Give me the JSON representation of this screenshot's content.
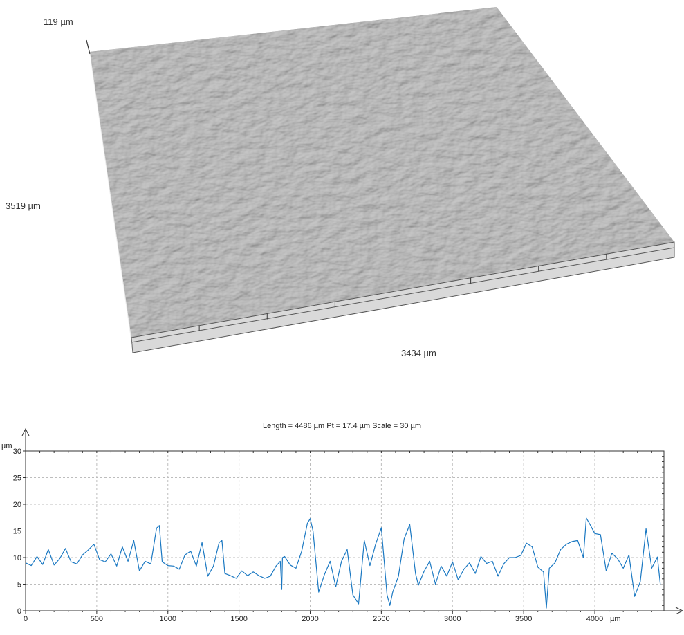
{
  "surface": {
    "z_extent_label": "119 µm",
    "y_extent_label": "3519 µm",
    "x_extent_label": "3434 µm"
  },
  "profile": {
    "header": "Length = 4486 µm  Pt = 17.4 µm  Scale = 30 µm"
  },
  "chart_data": {
    "type": "line",
    "title": "Length = 4486 µm  Pt = 17.4 µm  Scale = 30 µm",
    "xlabel": "µm",
    "ylabel": "µm",
    "xlim": [
      0,
      4486
    ],
    "ylim": [
      0,
      30
    ],
    "x_ticks": [
      "0",
      "500",
      "1000",
      "1500",
      "2000",
      "2500",
      "3000",
      "3500",
      "4000"
    ],
    "x_unit_label": "µm",
    "y_ticks": [
      "0",
      "5",
      "10",
      "15",
      "20",
      "25",
      "30"
    ],
    "y_unit_label": "µm",
    "grid": true,
    "color": "#1a78c2",
    "series": [
      {
        "x": [
          0,
          40,
          80,
          120,
          160,
          200,
          240,
          280,
          320,
          360,
          400,
          440,
          480,
          520,
          560,
          600,
          640,
          680,
          720,
          760,
          800,
          840,
          880,
          920,
          940,
          960,
          1000,
          1040,
          1080,
          1120,
          1160,
          1200,
          1240,
          1280,
          1320,
          1360,
          1380,
          1400,
          1440,
          1480,
          1520,
          1560,
          1600,
          1640,
          1680,
          1720,
          1760,
          1790,
          1800,
          1805,
          1820,
          1860,
          1900,
          1940,
          1980,
          2000,
          2020,
          2060,
          2100,
          2140,
          2180,
          2220,
          2260,
          2300,
          2340,
          2360,
          2380,
          2420,
          2460,
          2500,
          2540,
          2560,
          2580,
          2620,
          2660,
          2700,
          2740,
          2760,
          2800,
          2840,
          2880,
          2920,
          2960,
          3000,
          3040,
          3080,
          3120,
          3160,
          3200,
          3240,
          3280,
          3320,
          3360,
          3400,
          3440,
          3480,
          3520,
          3560,
          3600,
          3640,
          3660,
          3680,
          3720,
          3760,
          3800,
          3840,
          3880,
          3920,
          3940,
          3960,
          4000,
          4040,
          4080,
          4120,
          4160,
          4200,
          4240,
          4280,
          4320,
          4360,
          4400,
          4440,
          4460
        ],
        "y": [
          9,
          8.5,
          10.2,
          8.7,
          11.5,
          8.6,
          9.8,
          11.7,
          9.2,
          8.8,
          10.5,
          11.4,
          12.5,
          9.6,
          9.2,
          10.7,
          8.4,
          12,
          9.3,
          13.2,
          7.5,
          9.3,
          8.8,
          15.5,
          16,
          9.2,
          8.5,
          8.4,
          7.8,
          10.5,
          11.2,
          8.4,
          12.8,
          6.5,
          8.4,
          12.8,
          13.2,
          7,
          6.6,
          6.1,
          7.5,
          6.6,
          7.3,
          6.6,
          6.1,
          6.5,
          8.4,
          9.3,
          4,
          10,
          10.2,
          8.6,
          8,
          11.2,
          16.4,
          17.3,
          15,
          3.5,
          6.8,
          9.3,
          4.5,
          9.3,
          11.5,
          3,
          1.3,
          7.3,
          13.2,
          8.5,
          12.5,
          15.6,
          3,
          1,
          3.5,
          6.5,
          13.5,
          16.2,
          7,
          4.8,
          7.4,
          9.3,
          5,
          8.4,
          6.5,
          9.2,
          5.8,
          7.8,
          9,
          7,
          10.2,
          8.9,
          9.3,
          6.5,
          8.8,
          10,
          10,
          10.4,
          12.7,
          12,
          8.2,
          7.3,
          0.5,
          8,
          9,
          11.5,
          12.5,
          13,
          13.2,
          10,
          17.4,
          16.5,
          14.5,
          14.3,
          7.5,
          10.8,
          9.8,
          8,
          10.5,
          2.7,
          5.5,
          15.4,
          8,
          10.1,
          5
        ]
      }
    ]
  }
}
